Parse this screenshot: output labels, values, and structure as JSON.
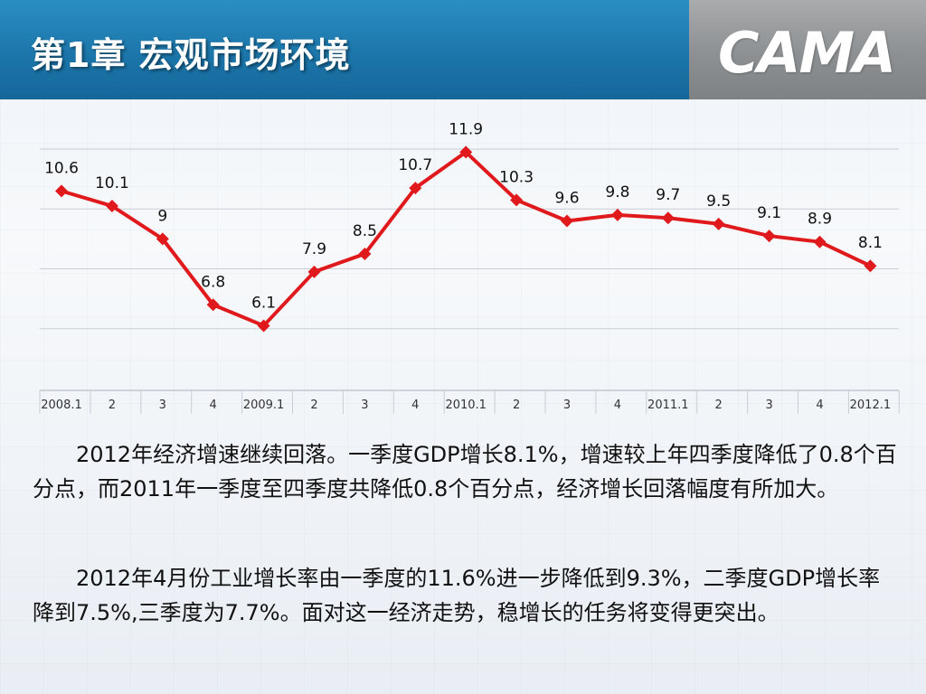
{
  "header": {
    "title": "第1章   宏观市场环境",
    "logo": "CAMA"
  },
  "chart_data": {
    "type": "line",
    "categories": [
      "2008.1",
      "2",
      "3",
      "4",
      "2009.1",
      "2",
      "3",
      "4",
      "2010.1",
      "2",
      "3",
      "4",
      "2011.1",
      "2",
      "3",
      "4",
      "2012.1"
    ],
    "series": [
      {
        "values": [
          10.6,
          10.1,
          9,
          6.8,
          6.1,
          7.9,
          8.5,
          10.7,
          11.9,
          10.3,
          9.6,
          9.8,
          9.7,
          9.5,
          9.1,
          8.9,
          8.1
        ],
        "labels": [
          "10.6",
          "10.1",
          "9",
          "6.8",
          "6.1",
          "7.9",
          "8.5",
          "10.7",
          "11.9",
          "10.3",
          "9.6",
          "9.8",
          "9.7",
          "9.5",
          "9.1",
          "8.9",
          "8.1"
        ],
        "color": "#e0191c"
      }
    ],
    "ylim": [
      4,
      12
    ],
    "grid": true,
    "legend": "none"
  },
  "text": {
    "p1": "2012年经济增速继续回落。一季度GDP增长8.1%，增速较上年四季度降低了0.8个百分点，而2011年一季度至四季度共降低0.8个百分点，经济增长回落幅度有所加大。",
    "p2": "2012年4月份工业增长率由一季度的11.6%进一步降低到9.3%，二季度GDP增长率降到7.5%,三季度为7.7%。面对这一经济走势，稳增长的任务将变得更突出。"
  }
}
